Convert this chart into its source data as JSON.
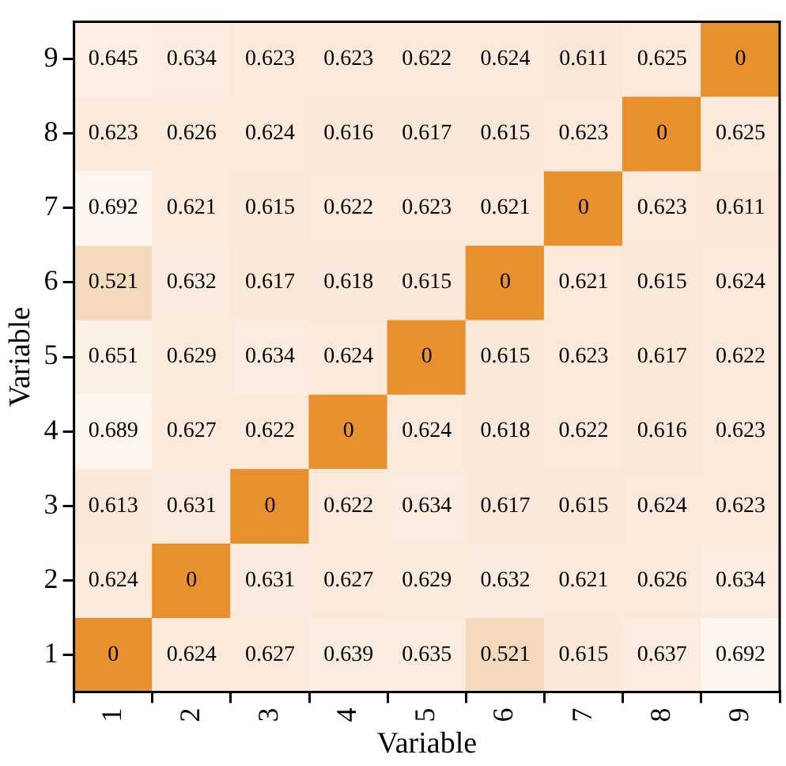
{
  "chart_data": {
    "type": "heatmap",
    "xlabel": "Variable",
    "ylabel": "Variable",
    "data_labels": true,
    "categories": [
      "1",
      "2",
      "3",
      "4",
      "5",
      "6",
      "7",
      "8",
      "9"
    ],
    "y_categories": [
      "9",
      "8",
      "7",
      "6",
      "5",
      "4",
      "3",
      "2",
      "1"
    ],
    "cells": [
      [
        0.645,
        0.634,
        0.623,
        0.623,
        0.622,
        0.624,
        0.611,
        0.625,
        0
      ],
      [
        0.623,
        0.626,
        0.624,
        0.616,
        0.617,
        0.615,
        0.623,
        0,
        0.625
      ],
      [
        0.692,
        0.621,
        0.615,
        0.622,
        0.623,
        0.621,
        0,
        0.623,
        0.611
      ],
      [
        0.521,
        0.632,
        0.617,
        0.618,
        0.615,
        0,
        0.621,
        0.615,
        0.624
      ],
      [
        0.651,
        0.629,
        0.634,
        0.624,
        0,
        0.615,
        0.623,
        0.617,
        0.622
      ],
      [
        0.689,
        0.627,
        0.622,
        0,
        0.624,
        0.618,
        0.622,
        0.616,
        0.623
      ],
      [
        0.613,
        0.631,
        0,
        0.622,
        0.634,
        0.617,
        0.615,
        0.624,
        0.623
      ],
      [
        0.624,
        0,
        0.631,
        0.627,
        0.629,
        0.632,
        0.621,
        0.626,
        0.634
      ],
      [
        0,
        0.624,
        0.627,
        0.639,
        0.635,
        0.521,
        0.615,
        0.637,
        0.692
      ]
    ]
  }
}
